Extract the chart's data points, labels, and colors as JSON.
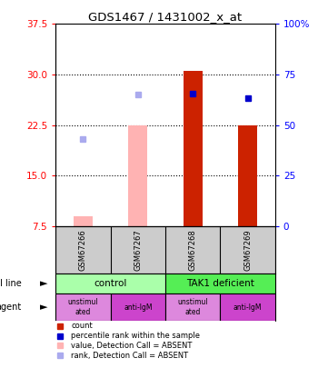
{
  "title": "GDS1467 / 1431002_x_at",
  "samples": [
    "GSM67266",
    "GSM67267",
    "GSM67268",
    "GSM67269"
  ],
  "ylim_left": [
    7.5,
    37.5
  ],
  "ylim_right": [
    0,
    100
  ],
  "yticks_left": [
    7.5,
    15.0,
    22.5,
    30.0,
    37.5
  ],
  "yticks_right": [
    0,
    25,
    50,
    75,
    100
  ],
  "bar_values": [
    null,
    null,
    30.5,
    22.5
  ],
  "pink_bar_values": [
    9.0,
    22.5,
    null,
    null
  ],
  "pink_color": "#ffb3b3",
  "red_color": "#cc2200",
  "blue_sq_values": [
    null,
    null,
    27.2,
    26.5
  ],
  "light_blue_sq_values": [
    20.5,
    27.0,
    null,
    null
  ],
  "blue_color": "#0000cc",
  "light_blue_color": "#aaaaee",
  "bar_width": 0.35,
  "cell_line_labels": [
    "control",
    "TAK1 deficient"
  ],
  "cell_line_colors": [
    "#aaffaa",
    "#55ee55"
  ],
  "agent_labels": [
    "unstimul\nated",
    "anti-IgM",
    "unstimul\nated",
    "anti-IgM"
  ],
  "agent_colors": [
    "#dd88dd",
    "#cc44cc",
    "#dd88dd",
    "#cc44cc"
  ],
  "legend_colors": [
    "#cc2200",
    "#0000cc",
    "#ffb3b3",
    "#aaaaee"
  ],
  "legend_texts": [
    "count",
    "percentile rank within the sample",
    "value, Detection Call = ABSENT",
    "rank, Detection Call = ABSENT"
  ],
  "sample_bg": "#cccccc",
  "background_color": "#ffffff"
}
